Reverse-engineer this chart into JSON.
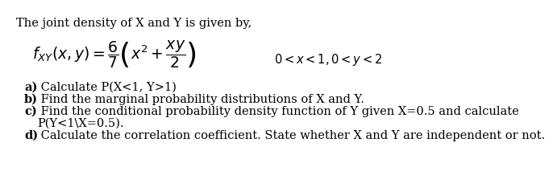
{
  "background_color": "#ffffff",
  "intro_text": "The joint density of X and Y is given by,",
  "formula_lhs": "$f_{XY}(x, y) = \\dfrac{6}{7}\\left(x^2 + \\dfrac{xy}{2}\\right)$",
  "formula_rhs": "$0 < x < 1, 0 < y < 2$",
  "part_a_bold": "a)",
  "part_a_rest": " Calculate P(X<1, Y>1)",
  "part_b_bold": "b)",
  "part_b_rest": " Find the marginal probability distributions of X and Y.",
  "part_c_bold": "c)",
  "part_c_rest": " Find the conditional probability density function of Y given X=0.5 and calculate",
  "part_c_cont": "P(Y<1\\X=0.5).",
  "part_d_bold": "d)",
  "part_d_rest": " Calculate the correlation coefficient. State whether X and Y are independent or not.",
  "intro_fontsize": 10.5,
  "formula_fontsize": 13.5,
  "condition_fontsize": 10.5,
  "parts_fontsize": 10.5
}
